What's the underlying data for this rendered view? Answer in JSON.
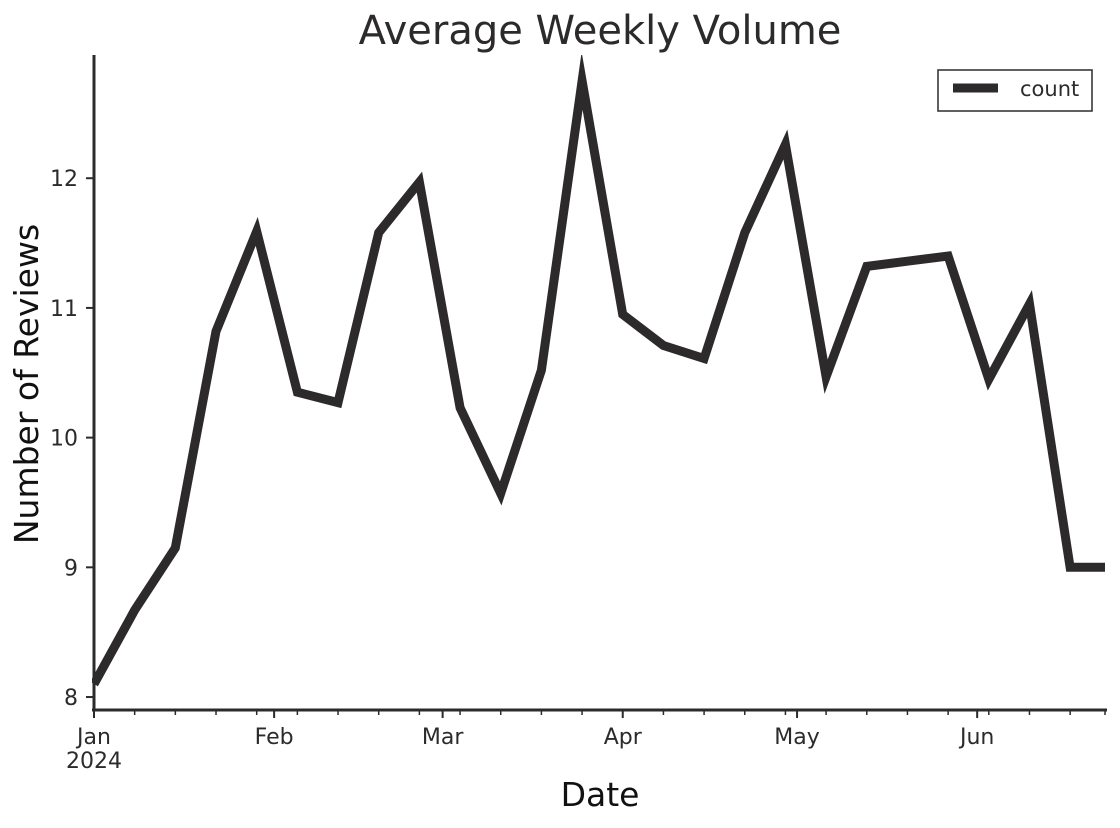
{
  "chart_data": {
    "type": "line",
    "title": "Average Weekly Volume",
    "xlabel": "Date",
    "ylabel": "Number of Reviews",
    "x_axis_kind": "date",
    "xlim": [
      "2024-01-01",
      "2024-06-23"
    ],
    "ylim": [
      7.9,
      12.95
    ],
    "yticks": [
      8,
      9,
      10,
      11,
      12
    ],
    "xticks": [
      {
        "date": "2024-01-01",
        "label": "Jan",
        "sublabel": "2024"
      },
      {
        "date": "2024-02-01",
        "label": "Feb",
        "sublabel": ""
      },
      {
        "date": "2024-03-01",
        "label": "Mar",
        "sublabel": ""
      },
      {
        "date": "2024-04-01",
        "label": "Apr",
        "sublabel": ""
      },
      {
        "date": "2024-05-01",
        "label": "May",
        "sublabel": ""
      },
      {
        "date": "2024-06-01",
        "label": "Jun",
        "sublabel": ""
      }
    ],
    "grid": false,
    "legend_position": "top-right",
    "line_color": "#2d2a2b",
    "series": [
      {
        "name": "count",
        "x": [
          "2024-01-01",
          "2024-01-08",
          "2024-01-15",
          "2024-01-22",
          "2024-01-29",
          "2024-02-05",
          "2024-02-12",
          "2024-02-19",
          "2024-02-26",
          "2024-03-04",
          "2024-03-11",
          "2024-03-18",
          "2024-03-25",
          "2024-04-01",
          "2024-04-08",
          "2024-04-15",
          "2024-04-22",
          "2024-04-29",
          "2024-05-06",
          "2024-05-13",
          "2024-05-20",
          "2024-05-27",
          "2024-06-03",
          "2024-06-10",
          "2024-06-17",
          "2024-06-23"
        ],
        "y": [
          8.1,
          8.67,
          9.15,
          10.82,
          11.59,
          10.35,
          10.27,
          11.58,
          11.97,
          10.23,
          9.57,
          10.52,
          12.75,
          10.95,
          10.71,
          10.61,
          11.58,
          12.26,
          10.47,
          11.32,
          11.36,
          11.4,
          10.45,
          11.03,
          9.0,
          9.0
        ]
      }
    ]
  }
}
